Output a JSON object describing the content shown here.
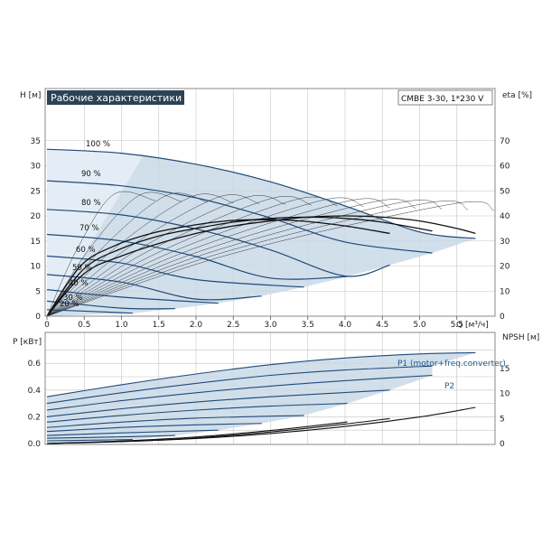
{
  "title": "Рабочие характеристики",
  "model": "CMBE 3-30, 1*230 V",
  "colors": {
    "title_bg": "#2c4356",
    "title_text": "#ffffff",
    "envelope_fill": "#c9d9e8",
    "envelope_light": "#e6eef6",
    "curve": "#1f4a78",
    "eff_curve": "#111111",
    "grid": "#c4c4c4",
    "label_blue": "#1f5a8a"
  },
  "chart_data": [
    {
      "type": "line",
      "name": "head",
      "xlabel": "Q [м³/ч]",
      "ylabel": "H [м]",
      "y2label": "eta [%]",
      "xlim": [
        0,
        6.0
      ],
      "ylim": [
        0,
        40
      ],
      "y2lim": [
        0,
        80
      ],
      "x_ticks": [
        "0",
        "0.5",
        "1.0",
        "1.5",
        "2.0",
        "2.5",
        "3.0",
        "3.5",
        "4.0",
        "4.5",
        "5.0",
        "5.5",
        "Q [м³/ч]"
      ],
      "y_ticks": [
        "0",
        "5",
        "10",
        "15",
        "20",
        "25",
        "30",
        "35"
      ],
      "y2_ticks": [
        "0",
        "10",
        "20",
        "30",
        "40",
        "50",
        "60",
        "70"
      ],
      "speed_labels": [
        "100 %",
        "90 %",
        "80 %",
        "70 %",
        "60 %",
        "50 %",
        "40 %",
        "30 %",
        "20 %"
      ],
      "speed_curves": [
        {
          "speed": 100,
          "points": [
            [
              0,
              33.3
            ],
            [
              1.0,
              32.5
            ],
            [
              2.0,
              30.3
            ],
            [
              3.0,
              26.8
            ],
            [
              4.0,
              22.0
            ],
            [
              5.0,
              16.8
            ],
            [
              5.75,
              15.5
            ]
          ]
        },
        {
          "speed": 90,
          "points": [
            [
              0,
              27.0
            ],
            [
              1.0,
              26.0
            ],
            [
              2.0,
              23.6
            ],
            [
              3.0,
              19.6
            ],
            [
              4.0,
              14.8
            ],
            [
              5.17,
              12.6
            ]
          ]
        },
        {
          "speed": 80,
          "points": [
            [
              0,
              21.3
            ],
            [
              1.0,
              20.2
            ],
            [
              2.0,
              17.4
            ],
            [
              3.0,
              13.2
            ],
            [
              4.0,
              8.0
            ],
            [
              4.6,
              10.2
            ]
          ]
        },
        {
          "speed": 70,
          "points": [
            [
              0,
              16.3
            ],
            [
              1.0,
              15.0
            ],
            [
              2.0,
              11.9
            ],
            [
              3.0,
              7.6
            ],
            [
              4.03,
              7.9
            ]
          ]
        },
        {
          "speed": 60,
          "points": [
            [
              0,
              12.0
            ],
            [
              1.0,
              10.6
            ],
            [
              2.0,
              7.3
            ],
            [
              3.45,
              5.8
            ]
          ]
        },
        {
          "speed": 50,
          "points": [
            [
              0,
              8.3
            ],
            [
              1.0,
              6.8
            ],
            [
              2.0,
              3.4
            ],
            [
              2.88,
              4.0
            ]
          ]
        },
        {
          "speed": 40,
          "points": [
            [
              0,
              5.3
            ],
            [
              1.0,
              3.8
            ],
            [
              2.3,
              2.6
            ]
          ]
        },
        {
          "speed": 30,
          "points": [
            [
              0,
              3.0
            ],
            [
              1.0,
              1.6
            ],
            [
              1.72,
              1.5
            ]
          ]
        },
        {
          "speed": 20,
          "points": [
            [
              0,
              1.3
            ],
            [
              1.15,
              0.6
            ]
          ]
        }
      ],
      "efficiency_curves": [
        {
          "name": "eta",
          "points": [
            [
              0,
              0
            ],
            [
              0.5,
              17
            ],
            [
              1.0,
              24
            ],
            [
              1.5,
              29
            ],
            [
              2.0,
              33
            ],
            [
              2.5,
              36
            ],
            [
              3.0,
              38
            ],
            [
              3.5,
              39.5
            ],
            [
              4.0,
              40
            ],
            [
              4.5,
              39.5
            ],
            [
              5.0,
              38
            ],
            [
              5.5,
              35
            ],
            [
              5.75,
              33
            ]
          ]
        },
        {
          "name": "eta",
          "points": [
            [
              0,
              0
            ],
            [
              0.5,
              19
            ],
            [
              1.0,
              27
            ],
            [
              1.5,
              32
            ],
            [
              2.0,
              35
            ],
            [
              2.5,
              37.5
            ],
            [
              3.0,
              39
            ],
            [
              3.5,
              39.5
            ],
            [
              4.0,
              39
            ],
            [
              4.5,
              37.5
            ],
            [
              5.17,
              34
            ]
          ]
        },
        {
          "name": "eta",
          "points": [
            [
              0,
              0
            ],
            [
              0.45,
              20
            ],
            [
              0.9,
              28
            ],
            [
              1.4,
              33
            ],
            [
              1.9,
              36
            ],
            [
              2.4,
              38
            ],
            [
              2.9,
              38.5
            ],
            [
              3.4,
              38
            ],
            [
              4.0,
              36
            ],
            [
              4.6,
              33
            ]
          ]
        }
      ]
    },
    {
      "type": "line",
      "name": "power",
      "xlabel": "",
      "ylabel": "P [кВт]",
      "y2label": "NPSH [м]",
      "xlim": [
        0,
        6.0
      ],
      "ylim": [
        0,
        0.75
      ],
      "y2lim": [
        0,
        20
      ],
      "y_ticks": [
        "0.0",
        "0.2",
        "0.4",
        "0.6"
      ],
      "y2_ticks": [
        "0",
        "5",
        "10",
        "15"
      ],
      "series_labels": [
        "P1 (motor+freq.converter)",
        "P2"
      ],
      "power_curves": [
        {
          "speed": 100,
          "points": [
            [
              0,
              0.35
            ],
            [
              1.0,
              0.44
            ],
            [
              2.0,
              0.52
            ],
            [
              3.0,
              0.59
            ],
            [
              4.0,
              0.64
            ],
            [
              5.0,
              0.67
            ],
            [
              5.75,
              0.68
            ]
          ]
        },
        {
          "speed": 100,
          "points": [
            [
              0,
              0.3
            ],
            [
              1.0,
              0.38
            ],
            [
              2.0,
              0.45
            ],
            [
              3.0,
              0.51
            ],
            [
              4.0,
              0.55
            ],
            [
              5.17,
              0.58
            ]
          ]
        },
        {
          "speed": 90,
          "points": [
            [
              0,
              0.25
            ],
            [
              1.0,
              0.32
            ],
            [
              2.0,
              0.38
            ],
            [
              3.0,
              0.43
            ],
            [
              4.0,
              0.47
            ],
            [
              5.17,
              0.51
            ]
          ]
        },
        {
          "speed": 80,
          "points": [
            [
              0,
              0.2
            ],
            [
              1.0,
              0.26
            ],
            [
              2.0,
              0.31
            ],
            [
              3.0,
              0.35
            ],
            [
              4.6,
              0.4
            ]
          ]
        },
        {
          "speed": 70,
          "points": [
            [
              0,
              0.16
            ],
            [
              1.0,
              0.21
            ],
            [
              2.0,
              0.25
            ],
            [
              3.0,
              0.28
            ],
            [
              4.03,
              0.3
            ]
          ]
        },
        {
          "speed": 60,
          "points": [
            [
              0,
              0.12
            ],
            [
              1.0,
              0.16
            ],
            [
              2.0,
              0.19
            ],
            [
              3.45,
              0.21
            ]
          ]
        },
        {
          "speed": 50,
          "points": [
            [
              0,
              0.09
            ],
            [
              1.0,
              0.12
            ],
            [
              2.0,
              0.14
            ],
            [
              2.88,
              0.15
            ]
          ]
        },
        {
          "speed": 40,
          "points": [
            [
              0,
              0.06
            ],
            [
              1.0,
              0.08
            ],
            [
              2.3,
              0.1
            ]
          ]
        },
        {
          "speed": 30,
          "points": [
            [
              0,
              0.04
            ],
            [
              1.0,
              0.05
            ],
            [
              1.72,
              0.06
            ]
          ]
        },
        {
          "speed": 20,
          "points": [
            [
              0,
              0.02
            ],
            [
              1.15,
              0.03
            ]
          ]
        }
      ],
      "npsh_curves": [
        {
          "name": "NPSH",
          "points": [
            [
              0,
              0.0
            ],
            [
              1.0,
              0.4
            ],
            [
              2.0,
              1.0
            ],
            [
              3.0,
              2.0
            ],
            [
              4.0,
              3.4
            ],
            [
              5.0,
              5.3
            ],
            [
              5.75,
              7.2
            ]
          ]
        },
        {
          "name": "NPSH",
          "points": [
            [
              0,
              0.0
            ],
            [
              1.0,
              0.4
            ],
            [
              2.0,
              1.1
            ],
            [
              3.0,
              2.3
            ],
            [
              4.0,
              3.9
            ],
            [
              4.6,
              5.0
            ]
          ]
        },
        {
          "name": "NPSH",
          "points": [
            [
              0,
              0.0
            ],
            [
              1.0,
              0.5
            ],
            [
              2.0,
              1.3
            ],
            [
              3.0,
              2.6
            ],
            [
              4.03,
              4.3
            ]
          ]
        }
      ]
    }
  ]
}
